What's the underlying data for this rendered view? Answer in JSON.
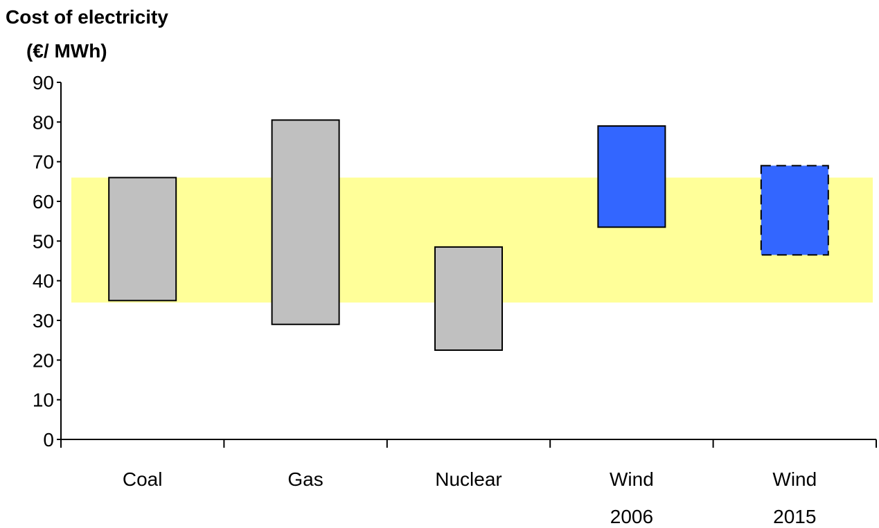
{
  "chart_data": {
    "type": "bar",
    "subtype": "floating-range",
    "title": "Cost of electricity",
    "ylabel": "(€/ MWh)",
    "ylim": [
      0,
      90
    ],
    "yticks": [
      "0",
      "10",
      "20",
      "30",
      "40",
      "50",
      "60",
      "70",
      "80",
      "90"
    ],
    "categories": [
      [
        "Coal"
      ],
      [
        "Gas"
      ],
      [
        "Nuclear"
      ],
      [
        "Wind",
        "2006"
      ],
      [
        "Wind",
        "2015"
      ]
    ],
    "ranges": [
      {
        "low": 35,
        "high": 66,
        "color": "#c0c0c0",
        "style": "solid"
      },
      {
        "low": 29,
        "high": 80.5,
        "color": "#c0c0c0",
        "style": "solid"
      },
      {
        "low": 22.5,
        "high": 48.5,
        "color": "#c0c0c0",
        "style": "solid"
      },
      {
        "low": 53.5,
        "high": 79,
        "color": "#3366ff",
        "style": "solid"
      },
      {
        "low": 46.5,
        "high": 69,
        "color": "#3366ff",
        "style": "dashed"
      }
    ],
    "band": {
      "low": 34.5,
      "high": 66,
      "color": "#ffff99"
    },
    "grid": false,
    "legend": "none"
  }
}
